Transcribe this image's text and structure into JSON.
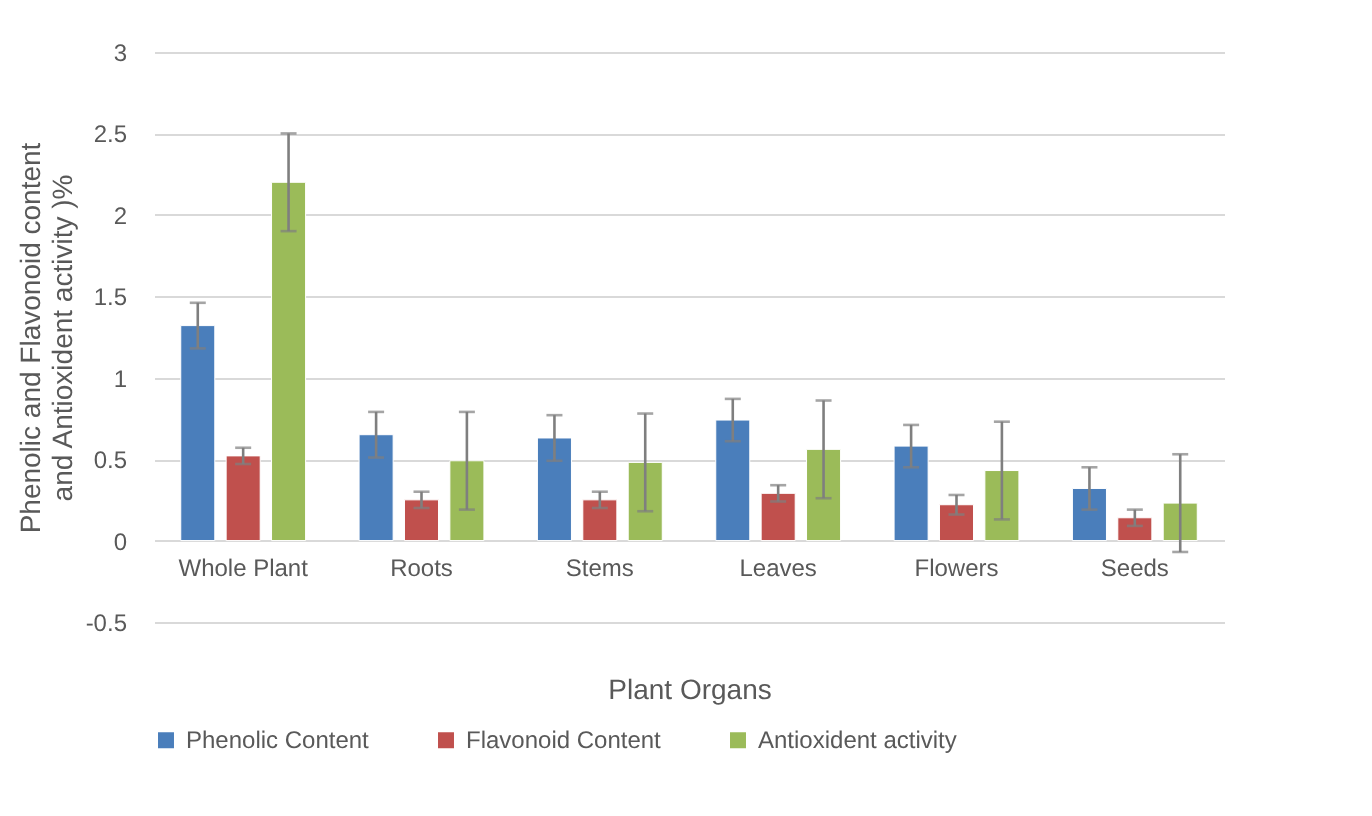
{
  "chart_data": {
    "type": "bar",
    "xlabel": "Plant Organs",
    "ylabel": "Phenolic and Flavonoid content and Antioxident activity )%",
    "categories": [
      "Whole Plant",
      "Roots",
      "Stems",
      "Leaves",
      "Flowers",
      "Seeds"
    ],
    "series": [
      {
        "name": "Phenolic Content",
        "color": "#4a7ebb",
        "values": [
          1.32,
          0.65,
          0.63,
          0.74,
          0.58,
          0.32
        ],
        "errors": [
          0.14,
          0.14,
          0.14,
          0.13,
          0.13,
          0.13
        ]
      },
      {
        "name": "Flavonoid Content",
        "color": "#c0504d",
        "values": [
          0.52,
          0.25,
          0.25,
          0.29,
          0.22,
          0.14
        ],
        "errors": [
          0.05,
          0.05,
          0.05,
          0.05,
          0.06,
          0.05
        ]
      },
      {
        "name": "Antioxident activity",
        "color": "#9bbb59",
        "values": [
          2.2,
          0.49,
          0.48,
          0.56,
          0.43,
          0.23
        ],
        "errors": [
          0.3,
          0.3,
          0.3,
          0.3,
          0.3,
          0.3
        ]
      }
    ],
    "ylim": [
      -0.5,
      3
    ],
    "yticks": [
      -0.5,
      0,
      0.5,
      1,
      1.5,
      2,
      2.5,
      3
    ],
    "grid": "y",
    "legend": "bottom"
  }
}
